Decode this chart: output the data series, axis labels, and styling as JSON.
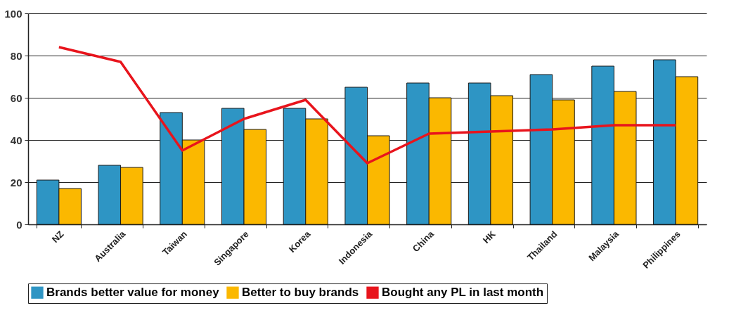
{
  "chart_data": {
    "type": "bar",
    "categories": [
      "NZ",
      "Australia",
      "Taiwan",
      "Singapore",
      "Korea",
      "Indonesia",
      "China",
      "HK",
      "Thailand",
      "Malaysia",
      "Philippines"
    ],
    "series": [
      {
        "name": "Brands better value for money",
        "color": "#2e95c4",
        "values": [
          21,
          28,
          53,
          55,
          55,
          65,
          67,
          67,
          71,
          75,
          78
        ]
      },
      {
        "name": "Better to buy brands",
        "color": "#fbb800",
        "values": [
          17,
          27,
          40,
          45,
          50,
          42,
          60,
          61,
          59,
          63,
          70
        ]
      },
      {
        "name": "Bought any PL in last month",
        "type": "line",
        "color": "#e8141c",
        "values": [
          84,
          77,
          35,
          50,
          59,
          29,
          43,
          44,
          45,
          47,
          47
        ]
      }
    ],
    "ylim": [
      0,
      100
    ],
    "yticks": [
      0,
      20,
      40,
      60,
      80,
      100
    ],
    "grid": "y",
    "legend": "bottom"
  }
}
